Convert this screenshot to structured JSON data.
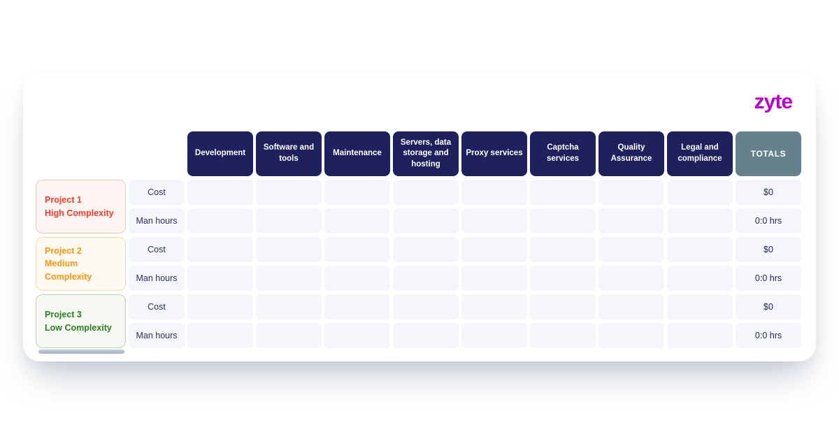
{
  "brand": {
    "logo_text": "zyte",
    "logo_color": "#bd00d2"
  },
  "table": {
    "column_headers": [
      "Development",
      "Software and tools",
      "Maintenance",
      "Servers, data storage and hosting",
      "Proxy services",
      "Captcha services",
      "Quality Assurance",
      "Legal and compliance"
    ],
    "totals_header": "TOTALS",
    "metric_labels": [
      "Cost",
      "Man hours"
    ],
    "empty_cell_value": "",
    "projects": [
      {
        "name": "Project 1",
        "complexity": "High Complexity",
        "text_color": "#f93b26",
        "border_color": "#f6c1ad",
        "bg_color": "#fdf5f1",
        "totals": {
          "cost": "$0",
          "man_hours": "0:0 hrs"
        }
      },
      {
        "name": "Project 2",
        "complexity": "Medium Complexity",
        "text_color": "#f8960d",
        "border_color": "#fbd9a6",
        "bg_color": "#fffaf1",
        "totals": {
          "cost": "$0",
          "man_hours": "0:0 hrs"
        }
      },
      {
        "name": "Project 3",
        "complexity": "Low Complexity",
        "text_color": "#2b7e21",
        "border_color": "#b9d3ae",
        "bg_color": "#f5f7f3",
        "totals": {
          "cost": "$0",
          "man_hours": "0:0 hrs"
        }
      }
    ],
    "colors": {
      "header_bg": "#1e215e",
      "totals_header_bg": "#66818d",
      "cell_bg": "#f5f6fb"
    }
  }
}
